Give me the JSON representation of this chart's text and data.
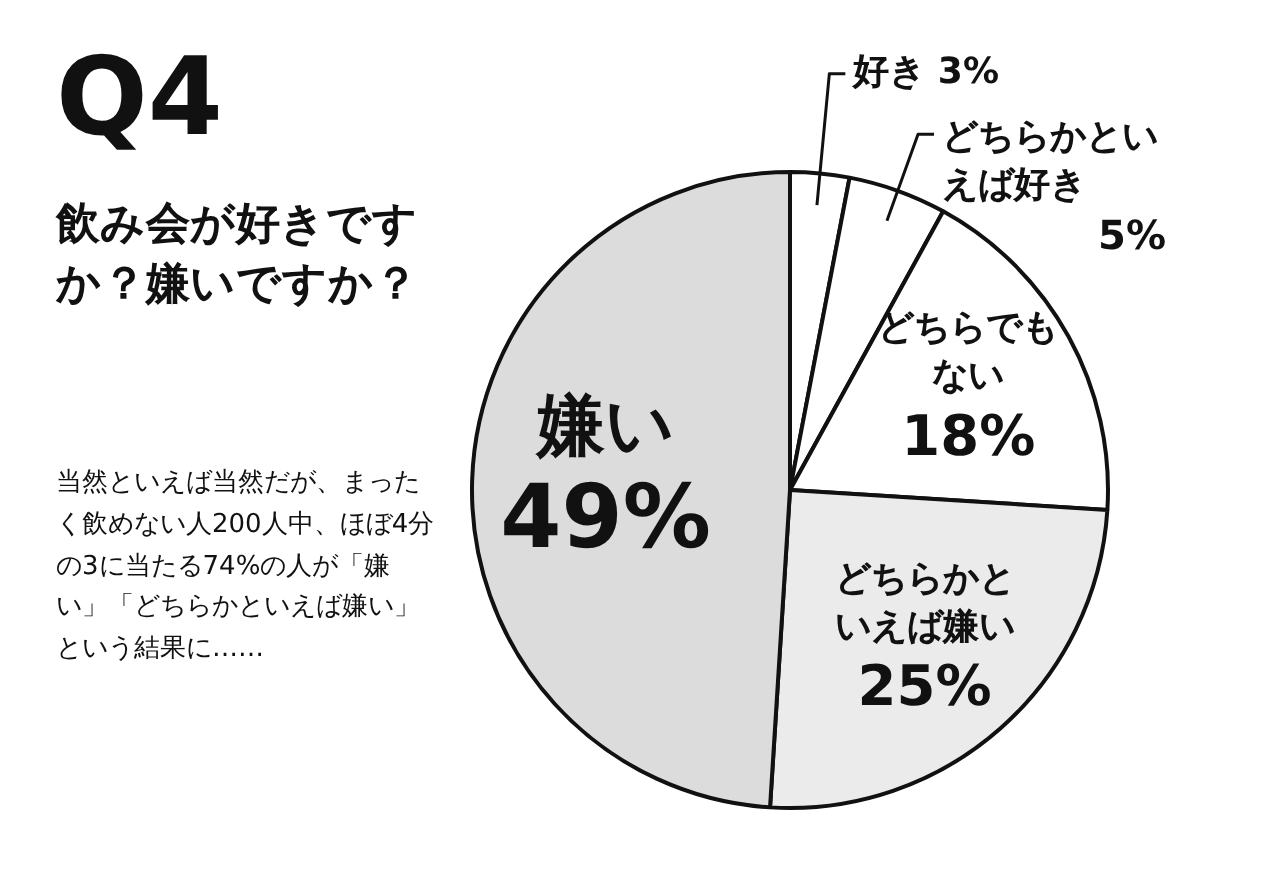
{
  "chart_data": {
    "type": "pie",
    "title": "Q4",
    "subtitle": "飲み会が好きですか？嫌いですか？",
    "annotations": [
      "当然といえば当然だが、まったく飲めない人200人中、ほぼ4分の3に当たる74%の人が「嫌い」「どちらかといえば嫌い」という結果に……"
    ],
    "categories": [
      "好き",
      "どちらかといえば好き",
      "どちらでもない",
      "どちらかといえば嫌い",
      "嫌い"
    ],
    "values": [
      3,
      5,
      18,
      25,
      49
    ],
    "value_labels": [
      "3%",
      "5%",
      "18%",
      "25%",
      "49%"
    ],
    "colors": [
      "#ffffff",
      "#ffffff",
      "#ffffff",
      "#ebebeb",
      "#dcdcdc"
    ],
    "legend": false
  }
}
